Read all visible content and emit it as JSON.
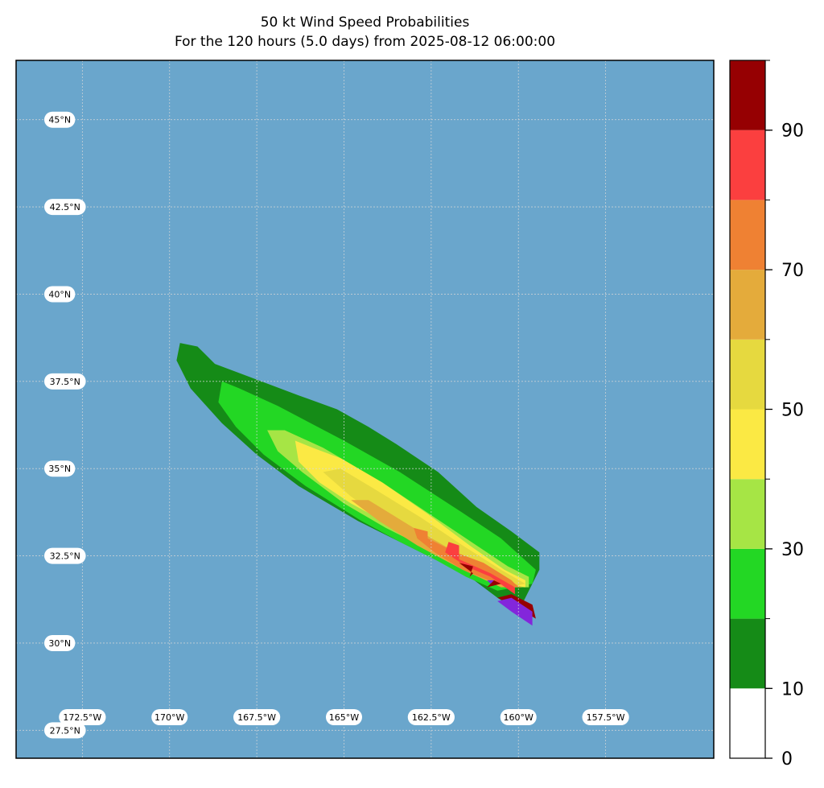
{
  "title": "50 kt Wind Speed Probabilities",
  "subtitle": "For the 120 hours (5.0 days) from 2025-08-12 06:00:00",
  "map": {
    "ocean_color": "#6aa6cc",
    "lon_range": [
      -174.4,
      -154.4
    ],
    "lat_range": [
      26.7,
      46.7
    ],
    "gridlines": "dotted",
    "lat_labels": [
      "45°N",
      "42.5°N",
      "40°N",
      "37.5°N",
      "35°N",
      "32.5°N",
      "30°N",
      "27.5°N"
    ],
    "lat_values": [
      45,
      42.5,
      40,
      37.5,
      35,
      32.5,
      30,
      27.5
    ],
    "lon_labels": [
      "172.5°W",
      "170°W",
      "167.5°W",
      "165°W",
      "162.5°W",
      "160°W",
      "157.5°W"
    ],
    "lon_values": [
      -172.5,
      -170,
      -167.5,
      -165,
      -162.5,
      -160,
      -157.5
    ]
  },
  "colorbar": {
    "levels": [
      0,
      10,
      20,
      30,
      40,
      50,
      60,
      70,
      80,
      90,
      100
    ],
    "colors": [
      "#ffffff",
      "#158b17",
      "#23d724",
      "#a6e545",
      "#fbe944",
      "#e6d93f",
      "#e4ab3b",
      "#ef8133",
      "#fb3f3f",
      "#960002",
      "#8326db"
    ],
    "tick_labels": [
      "0",
      "10",
      "30",
      "50",
      "70",
      "90"
    ],
    "tick_values": [
      0,
      10,
      30,
      50,
      70,
      90
    ]
  },
  "contours": [
    {
      "level": 0,
      "points": [
        [
          -169.7,
          38.6
        ],
        [
          -169.2,
          38.5
        ],
        [
          -168.7,
          38.0
        ],
        [
          -167.9,
          37.7
        ],
        [
          -166.3,
          37.1
        ],
        [
          -165.2,
          36.7
        ],
        [
          -164.3,
          36.2
        ],
        [
          -163.5,
          35.7
        ],
        [
          -162.3,
          34.9
        ],
        [
          -161.2,
          33.9
        ],
        [
          -160.2,
          33.2
        ],
        [
          -159.4,
          32.6
        ],
        [
          -159.4,
          32.1
        ],
        [
          -160.0,
          30.9
        ],
        [
          -160.6,
          31.3
        ],
        [
          -161.4,
          31.9
        ],
        [
          -162.2,
          32.3
        ],
        [
          -163.6,
          33.0
        ],
        [
          -164.6,
          33.5
        ],
        [
          -166.3,
          34.5
        ],
        [
          -167.5,
          35.4
        ],
        [
          -168.5,
          36.3
        ],
        [
          -169.4,
          37.3
        ],
        [
          -169.8,
          38.1
        ]
      ]
    },
    {
      "level": 10,
      "points": [
        [
          -168.5,
          37.5
        ],
        [
          -168.0,
          37.3
        ],
        [
          -166.9,
          36.8
        ],
        [
          -165.0,
          35.8
        ],
        [
          -163.4,
          34.9
        ],
        [
          -161.7,
          33.8
        ],
        [
          -160.5,
          33.0
        ],
        [
          -159.5,
          32.1
        ],
        [
          -159.6,
          31.7
        ],
        [
          -160.6,
          31.5
        ],
        [
          -161.5,
          31.9
        ],
        [
          -162.4,
          32.4
        ],
        [
          -163.4,
          32.9
        ],
        [
          -164.5,
          33.5
        ],
        [
          -166.1,
          34.5
        ],
        [
          -167.3,
          35.4
        ],
        [
          -168.1,
          36.2
        ],
        [
          -168.6,
          36.9
        ]
      ]
    },
    {
      "level": 20,
      "points": [
        [
          -167.2,
          36.1
        ],
        [
          -166.7,
          36.1
        ],
        [
          -165.6,
          35.6
        ],
        [
          -163.9,
          34.6
        ],
        [
          -162.4,
          33.6
        ],
        [
          -161.2,
          32.8
        ],
        [
          -160.3,
          32.2
        ],
        [
          -159.7,
          31.9
        ],
        [
          -159.7,
          31.6
        ],
        [
          -160.4,
          31.6
        ],
        [
          -161.2,
          32.0
        ],
        [
          -162.4,
          32.6
        ],
        [
          -163.8,
          33.3
        ],
        [
          -165.0,
          34.0
        ],
        [
          -166.2,
          34.9
        ],
        [
          -166.9,
          35.5
        ]
      ]
    },
    {
      "level": 30,
      "points": [
        [
          -166.4,
          35.8
        ],
        [
          -165.9,
          35.6
        ],
        [
          -165.1,
          35.3
        ],
        [
          -163.9,
          34.6
        ],
        [
          -162.6,
          33.7
        ],
        [
          -161.4,
          32.8
        ],
        [
          -160.4,
          32.1
        ],
        [
          -159.8,
          31.8
        ],
        [
          -159.8,
          31.6
        ],
        [
          -160.3,
          31.7
        ],
        [
          -161.1,
          32.1
        ],
        [
          -162.3,
          32.7
        ],
        [
          -163.7,
          33.4
        ],
        [
          -164.8,
          34.0
        ],
        [
          -165.7,
          34.6
        ],
        [
          -166.3,
          35.2
        ]
      ]
    },
    {
      "level": 40,
      "points": [
        [
          -165.6,
          34.9
        ],
        [
          -165.1,
          35.0
        ],
        [
          -164.1,
          34.4
        ],
        [
          -162.8,
          33.6
        ],
        [
          -161.6,
          32.8
        ],
        [
          -160.5,
          32.1
        ],
        [
          -159.8,
          31.7
        ],
        [
          -160.3,
          31.6
        ],
        [
          -161.3,
          32.1
        ],
        [
          -162.6,
          32.8
        ],
        [
          -163.8,
          33.5
        ],
        [
          -164.8,
          34.2
        ]
      ]
    },
    {
      "level": 50,
      "points": [
        [
          -164.8,
          34.1
        ],
        [
          -164.3,
          34.1
        ],
        [
          -163.0,
          33.3
        ],
        [
          -161.8,
          32.6
        ],
        [
          -160.7,
          32.0
        ],
        [
          -159.9,
          31.6
        ],
        [
          -160.5,
          31.6
        ],
        [
          -161.6,
          32.1
        ],
        [
          -162.9,
          32.8
        ],
        [
          -164.0,
          33.5
        ]
      ]
    },
    {
      "level": 60,
      "points": [
        [
          -163.0,
          33.3
        ],
        [
          -162.6,
          33.2
        ],
        [
          -162.6,
          33.0
        ],
        [
          -161.8,
          32.6
        ],
        [
          -161.0,
          32.3
        ],
        [
          -160.2,
          31.8
        ],
        [
          -160.0,
          31.6
        ],
        [
          -160.6,
          31.7
        ],
        [
          -161.6,
          32.1
        ],
        [
          -162.4,
          32.6
        ],
        [
          -162.9,
          33.0
        ]
      ]
    },
    {
      "level": 70,
      "points": [
        [
          -162.0,
          32.9
        ],
        [
          -161.7,
          32.8
        ],
        [
          -161.7,
          32.4
        ],
        [
          -160.8,
          32.0
        ],
        [
          -160.1,
          31.6
        ],
        [
          -160.1,
          31.6
        ],
        [
          -160.1,
          31.4
        ],
        [
          -160.8,
          31.9
        ],
        [
          -161.5,
          32.2
        ],
        [
          -162.1,
          32.6
        ]
      ]
    },
    {
      "level": 80,
      "points": [
        [
          -161.7,
          32.3
        ],
        [
          -161.3,
          32.0
        ],
        [
          -161.4,
          31.9
        ],
        [
          -161.3,
          32.2
        ]
      ]
    },
    {
      "level": 80,
      "points": [
        [
          -160.9,
          31.9
        ],
        [
          -160.5,
          31.7
        ],
        [
          -160.9,
          31.6
        ],
        [
          -160.7,
          31.8
        ]
      ]
    },
    {
      "level": 80,
      "points": [
        [
          -160.6,
          31.3
        ],
        [
          -160.2,
          31.4
        ],
        [
          -159.6,
          31.1
        ],
        [
          -159.5,
          30.7
        ],
        [
          -160.0,
          31.0
        ]
      ]
    },
    {
      "level": 90,
      "points": [
        [
          -160.9,
          31.8
        ],
        [
          -160.7,
          31.8
        ],
        [
          -160.8,
          31.7
        ]
      ]
    },
    {
      "level": 90,
      "points": [
        [
          -160.6,
          31.2
        ],
        [
          -160.2,
          31.3
        ],
        [
          -159.6,
          30.9
        ],
        [
          -159.6,
          30.5
        ],
        [
          -160.2,
          30.9
        ]
      ]
    }
  ]
}
